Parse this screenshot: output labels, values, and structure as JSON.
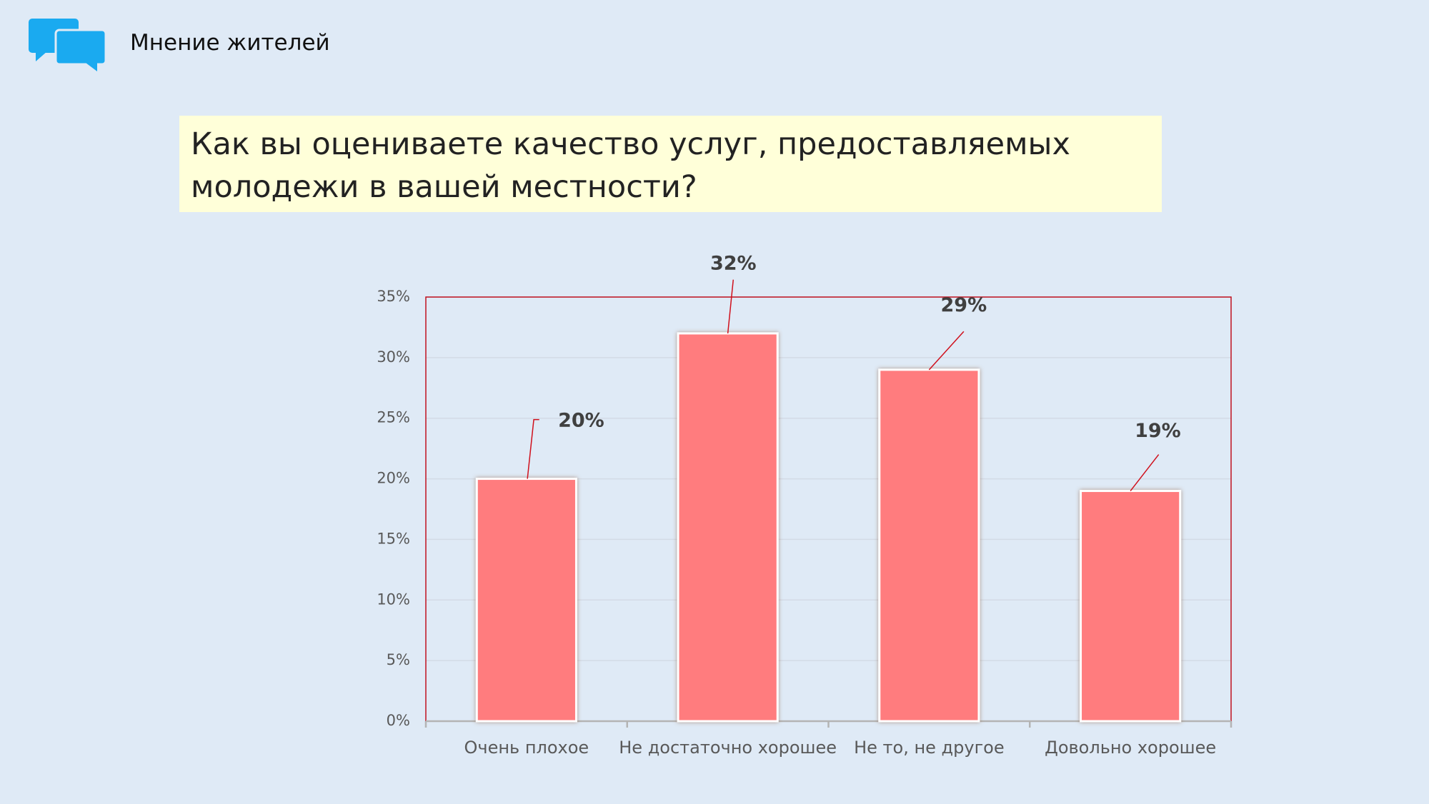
{
  "header": {
    "title": "Мнение жителей"
  },
  "chart_data": {
    "type": "bar",
    "title": "Как вы оцениваете качество услуг, предоставляемых молодежи в вашей местности?",
    "categories": [
      "Очень плохое",
      "Не достаточно хорошее",
      "Не то, не другое",
      "Довольно хорошее"
    ],
    "values": [
      20,
      32,
      29,
      19
    ],
    "value_labels": [
      "20%",
      "32%",
      "29%",
      "19%"
    ],
    "color": "#ff7b7e",
    "ylim": [
      0,
      35
    ],
    "yticks": [
      {
        "value": 0,
        "label": "0%"
      },
      {
        "value": 5,
        "label": "5%"
      },
      {
        "value": 10,
        "label": "10%"
      },
      {
        "value": 15,
        "label": "15%"
      },
      {
        "value": 20,
        "label": "20%"
      },
      {
        "value": 25,
        "label": "25%"
      },
      {
        "value": 30,
        "label": "30%"
      },
      {
        "value": 35,
        "label": "35%"
      }
    ],
    "grid": true
  }
}
